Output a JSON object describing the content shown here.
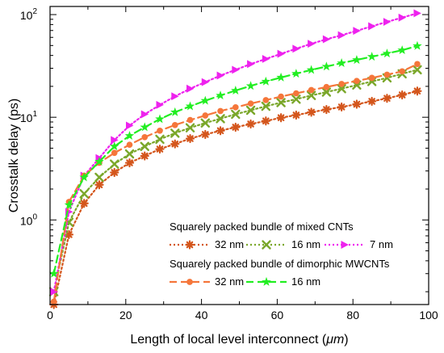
{
  "chart_data": {
    "type": "line",
    "xlabel_main": "Length of local level interconnect (",
    "xlabel_unit": "μm",
    "xlabel_tail": ")",
    "ylabel": "Crosstalk delay (ps)",
    "xlim": [
      0,
      100
    ],
    "ylim": [
      0.15,
      120
    ],
    "yscale": "log",
    "x_ticks": [
      "0",
      "20",
      "40",
      "60",
      "80",
      "100"
    ],
    "y_ticks": [
      {
        "base": "10",
        "exp": "0",
        "value": 1
      },
      {
        "base": "10",
        "exp": "1",
        "value": 10
      },
      {
        "base": "10",
        "exp": "2",
        "value": 100
      }
    ],
    "legend_placement": "bottom-right",
    "legend_groups": [
      {
        "title": "Squarely packed bundle of mixed CNTs",
        "series_indices": [
          0,
          1,
          2
        ]
      },
      {
        "title": "Squarely packed bundle of dimorphic MWCNTs",
        "series_indices": [
          3,
          4
        ]
      }
    ],
    "series": [
      {
        "name": "32 nm",
        "color": "#d4561c",
        "marker": "asterisk",
        "line": "dotted",
        "x": [
          1,
          5,
          9,
          13,
          17,
          21,
          25,
          29,
          33,
          37,
          41,
          45,
          49,
          53,
          57,
          61,
          65,
          69,
          73,
          77,
          81,
          85,
          89,
          93,
          97
        ],
        "y": [
          0.15,
          0.72,
          1.45,
          2.2,
          2.9,
          3.6,
          4.2,
          4.9,
          5.5,
          6.2,
          6.8,
          7.4,
          8.0,
          8.6,
          9.2,
          9.9,
          10.5,
          11.2,
          11.9,
          12.6,
          13.4,
          14.3,
          15.3,
          16.5,
          18.0
        ]
      },
      {
        "name": "16 nm",
        "color": "#7aa72a",
        "marker": "x",
        "line": "dotted",
        "x": [
          1,
          5,
          9,
          13,
          17,
          21,
          25,
          29,
          33,
          37,
          41,
          45,
          49,
          53,
          57,
          61,
          65,
          69,
          73,
          77,
          81,
          85,
          89,
          93,
          97
        ],
        "y": [
          0.2,
          0.95,
          1.8,
          2.6,
          3.5,
          4.4,
          5.2,
          6.1,
          7.0,
          7.9,
          8.8,
          9.7,
          10.7,
          11.7,
          12.8,
          13.9,
          15.0,
          16.3,
          17.6,
          19.0,
          20.6,
          22.3,
          24.2,
          26.5,
          29.0
        ]
      },
      {
        "name": "7 nm",
        "color": "#ee22ee",
        "marker": "triangle-right",
        "line": "dotted",
        "x": [
          1,
          5,
          9,
          13,
          17,
          21,
          25,
          29,
          33,
          37,
          41,
          45,
          49,
          53,
          57,
          61,
          65,
          69,
          73,
          77,
          81,
          85,
          89,
          93,
          97
        ],
        "y": [
          0.2,
          1.2,
          2.7,
          4.0,
          6.0,
          8.3,
          10.7,
          13.2,
          16.0,
          19.0,
          22.0,
          25.5,
          29.0,
          33.0,
          37.0,
          41.5,
          46.5,
          52.0,
          57.5,
          63.0,
          69.5,
          77.0,
          85.0,
          93.5,
          103.0
        ]
      },
      {
        "name": "32 nm",
        "color": "#f5763a",
        "marker": "circle",
        "line": "dashed",
        "x": [
          1,
          5,
          9,
          13,
          17,
          21,
          25,
          29,
          33,
          37,
          41,
          45,
          49,
          53,
          57,
          61,
          65,
          69,
          73,
          77,
          81,
          85,
          89,
          93,
          97
        ],
        "y": [
          0.16,
          1.5,
          2.7,
          3.6,
          4.5,
          5.4,
          6.4,
          7.4,
          8.4,
          9.4,
          10.4,
          11.5,
          12.5,
          13.6,
          14.7,
          15.9,
          17.1,
          18.4,
          19.7,
          21.1,
          22.6,
          24.2,
          26.0,
          28.0,
          33.0
        ]
      },
      {
        "name": "16 nm",
        "color": "#22ee22",
        "marker": "star",
        "line": "dashed",
        "x": [
          1,
          5,
          9,
          13,
          17,
          21,
          25,
          29,
          33,
          37,
          41,
          45,
          49,
          53,
          57,
          61,
          65,
          69,
          73,
          77,
          81,
          85,
          89,
          93,
          97
        ],
        "y": [
          0.3,
          1.4,
          2.6,
          3.7,
          5.2,
          6.6,
          8.0,
          9.6,
          11.2,
          12.8,
          14.5,
          16.3,
          18.2,
          20.2,
          22.3,
          24.4,
          26.6,
          28.9,
          31.2,
          33.7,
          36.2,
          38.9,
          41.8,
          45.0,
          49.5
        ]
      }
    ]
  }
}
